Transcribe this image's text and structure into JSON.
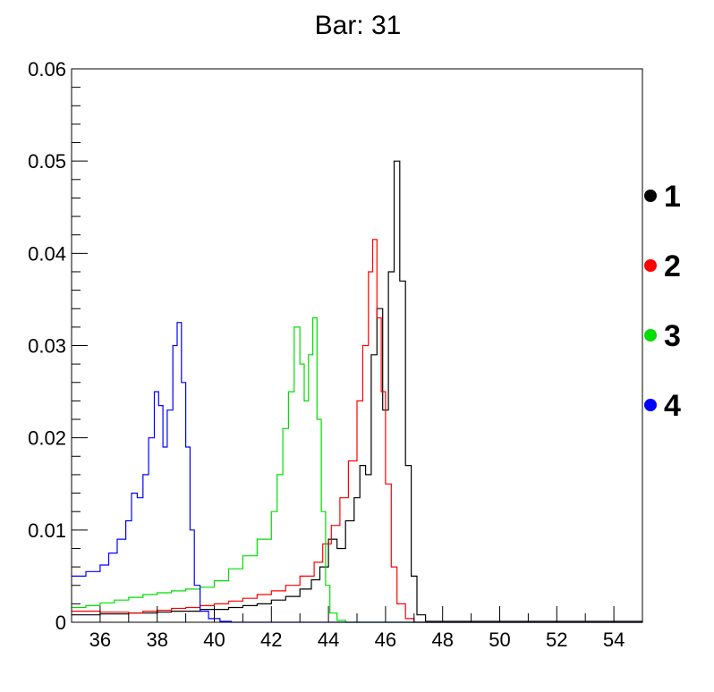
{
  "chart_data": {
    "type": "line",
    "title": "Bar: 31",
    "xlabel": "",
    "ylabel": "",
    "xlim": [
      35,
      55
    ],
    "ylim": [
      0,
      0.06
    ],
    "x_ticks": [
      36,
      38,
      40,
      42,
      44,
      46,
      48,
      50,
      52,
      54
    ],
    "x_tick_labels": [
      "36",
      "38",
      "40",
      "42",
      "44",
      "46",
      "48",
      "50",
      "52",
      "54"
    ],
    "y_ticks": [
      0,
      0.01,
      0.02,
      0.03,
      0.04,
      0.05,
      0.06
    ],
    "y_tick_labels": [
      "0",
      "0.01",
      "0.02",
      "0.03",
      "0.04",
      "0.05",
      "0.06"
    ],
    "grid": false,
    "legend_position": "right",
    "series": [
      {
        "name": "1",
        "color": "#000000",
        "points": [
          [
            35.0,
            0.0008
          ],
          [
            35.5,
            0.0008
          ],
          [
            36.0,
            0.0009
          ],
          [
            36.5,
            0.0009
          ],
          [
            37.0,
            0.001
          ],
          [
            37.5,
            0.001
          ],
          [
            38.0,
            0.0011
          ],
          [
            38.5,
            0.0012
          ],
          [
            39.0,
            0.0012
          ],
          [
            39.5,
            0.0014
          ],
          [
            40.0,
            0.0014
          ],
          [
            40.5,
            0.0016
          ],
          [
            41.0,
            0.0018
          ],
          [
            41.5,
            0.002
          ],
          [
            42.0,
            0.0024
          ],
          [
            42.5,
            0.0028
          ],
          [
            43.0,
            0.0036
          ],
          [
            43.4,
            0.0046
          ],
          [
            43.7,
            0.006
          ],
          [
            44.0,
            0.009
          ],
          [
            44.3,
            0.008
          ],
          [
            44.6,
            0.011
          ],
          [
            44.9,
            0.0135
          ],
          [
            45.1,
            0.017
          ],
          [
            45.3,
            0.016
          ],
          [
            45.5,
            0.029
          ],
          [
            45.7,
            0.034
          ],
          [
            45.9,
            0.023
          ],
          [
            46.1,
            0.038
          ],
          [
            46.3,
            0.05
          ],
          [
            46.5,
            0.037
          ],
          [
            46.7,
            0.017
          ],
          [
            46.9,
            0.005
          ],
          [
            47.1,
            0.0008
          ],
          [
            47.4,
            0.0001
          ],
          [
            55.0,
            0.0
          ]
        ]
      },
      {
        "name": "2",
        "color": "#ff0000",
        "points": [
          [
            35.0,
            0.0012
          ],
          [
            35.5,
            0.0012
          ],
          [
            36.0,
            0.0011
          ],
          [
            36.5,
            0.0011
          ],
          [
            37.0,
            0.001
          ],
          [
            37.5,
            0.0012
          ],
          [
            38.0,
            0.0013
          ],
          [
            38.5,
            0.0015
          ],
          [
            39.0,
            0.0016
          ],
          [
            39.5,
            0.0018
          ],
          [
            40.0,
            0.002
          ],
          [
            40.5,
            0.0023
          ],
          [
            41.0,
            0.0026
          ],
          [
            41.5,
            0.003
          ],
          [
            42.0,
            0.0034
          ],
          [
            42.5,
            0.004
          ],
          [
            43.0,
            0.005
          ],
          [
            43.5,
            0.0065
          ],
          [
            43.8,
            0.0085
          ],
          [
            44.1,
            0.0105
          ],
          [
            44.4,
            0.0135
          ],
          [
            44.7,
            0.0175
          ],
          [
            45.0,
            0.024
          ],
          [
            45.2,
            0.03
          ],
          [
            45.4,
            0.038
          ],
          [
            45.55,
            0.0415
          ],
          [
            45.7,
            0.033
          ],
          [
            45.85,
            0.025
          ],
          [
            46.0,
            0.015
          ],
          [
            46.2,
            0.006
          ],
          [
            46.4,
            0.002
          ],
          [
            46.7,
            0.0004
          ],
          [
            47.0,
            0.0
          ],
          [
            55.0,
            0.0
          ]
        ]
      },
      {
        "name": "3",
        "color": "#00dd00",
        "points": [
          [
            35.0,
            0.0016
          ],
          [
            35.5,
            0.0018
          ],
          [
            36.0,
            0.0021
          ],
          [
            36.5,
            0.0024
          ],
          [
            37.0,
            0.0027
          ],
          [
            37.5,
            0.003
          ],
          [
            38.0,
            0.0032
          ],
          [
            38.5,
            0.0034
          ],
          [
            39.0,
            0.0036
          ],
          [
            39.5,
            0.0038
          ],
          [
            40.0,
            0.0045
          ],
          [
            40.5,
            0.0058
          ],
          [
            41.0,
            0.0072
          ],
          [
            41.5,
            0.009
          ],
          [
            42.0,
            0.012
          ],
          [
            42.2,
            0.016
          ],
          [
            42.4,
            0.021
          ],
          [
            42.6,
            0.025
          ],
          [
            42.8,
            0.032
          ],
          [
            43.0,
            0.028
          ],
          [
            43.15,
            0.024
          ],
          [
            43.3,
            0.029
          ],
          [
            43.45,
            0.033
          ],
          [
            43.6,
            0.022
          ],
          [
            43.75,
            0.012
          ],
          [
            43.9,
            0.004
          ],
          [
            44.05,
            0.001
          ],
          [
            44.3,
            0.0002
          ],
          [
            44.6,
            0.0
          ],
          [
            55.0,
            0.0
          ]
        ]
      },
      {
        "name": "4",
        "color": "#0000ff",
        "points": [
          [
            35.0,
            0.005
          ],
          [
            35.5,
            0.0055
          ],
          [
            36.0,
            0.0062
          ],
          [
            36.3,
            0.0075
          ],
          [
            36.6,
            0.009
          ],
          [
            36.9,
            0.011
          ],
          [
            37.1,
            0.014
          ],
          [
            37.3,
            0.0135
          ],
          [
            37.5,
            0.016
          ],
          [
            37.7,
            0.02
          ],
          [
            37.9,
            0.025
          ],
          [
            38.05,
            0.0235
          ],
          [
            38.2,
            0.019
          ],
          [
            38.35,
            0.023
          ],
          [
            38.55,
            0.03
          ],
          [
            38.7,
            0.0325
          ],
          [
            38.85,
            0.026
          ],
          [
            39.0,
            0.019
          ],
          [
            39.15,
            0.01
          ],
          [
            39.3,
            0.004
          ],
          [
            39.5,
            0.0012
          ],
          [
            39.8,
            0.0004
          ],
          [
            40.2,
            0.0001
          ],
          [
            40.6,
            0.0
          ],
          [
            55.0,
            0.0
          ]
        ]
      }
    ]
  }
}
